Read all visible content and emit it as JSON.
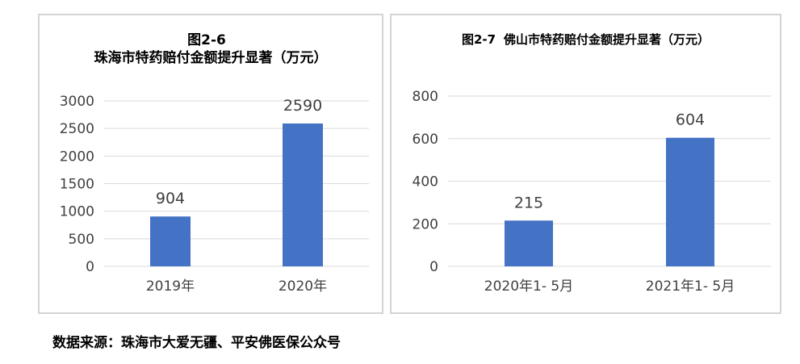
{
  "chart_data": [
    {
      "type": "bar",
      "title_prefix": "图2-6",
      "title": "珠海市特药赔付金额提升显著（万元）",
      "categories": [
        "2019年",
        "2020年"
      ],
      "values": [
        904,
        2590
      ],
      "ylim": [
        0,
        3000
      ],
      "yticks": [
        0,
        500,
        1000,
        1500,
        2000,
        2500,
        3000
      ],
      "grid": true,
      "color": "#4472C4"
    },
    {
      "type": "bar",
      "title_prefix": "图2-7",
      "title": "佛山市特药赔付金额提升显著（万元）",
      "categories": [
        "2020年1- 5月",
        "2021年1- 5月"
      ],
      "values": [
        215,
        604
      ],
      "ylim": [
        0,
        800
      ],
      "yticks": [
        0,
        200,
        400,
        600,
        800
      ],
      "grid": true,
      "color": "#4472C4"
    }
  ],
  "source": "数据来源：珠海市大爱无疆、平安佛医保公众号"
}
